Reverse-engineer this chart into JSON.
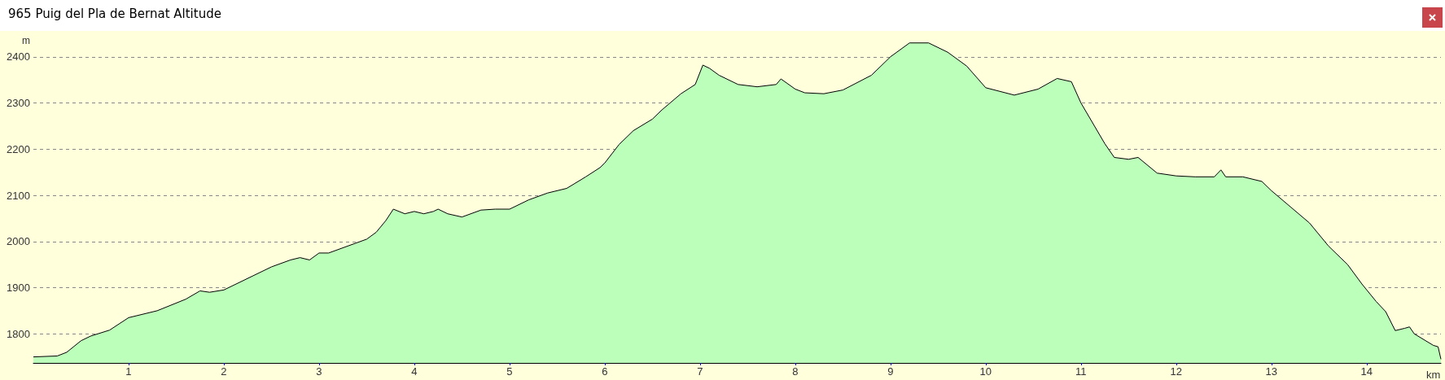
{
  "chart_data": {
    "type": "area",
    "title": "965 Puig del Pla de Bernat Altitude",
    "xlabel": "km",
    "ylabel": "m",
    "xlim": [
      0,
      14.78
    ],
    "xticks": [
      1,
      2,
      3,
      4,
      5,
      6,
      7,
      8,
      9,
      10,
      11,
      12,
      13,
      14
    ],
    "ylim": [
      1737,
      2456
    ],
    "yticks": [
      1800,
      1900,
      2000,
      2100,
      2200,
      2300,
      2400
    ],
    "grid": "y",
    "marker": "none",
    "line_style": "solid",
    "series": [
      {
        "color": "#bbffbb",
        "x": [
          0,
          0.25,
          0.35,
          0.5,
          0.6,
          0.8,
          1.0,
          1.3,
          1.6,
          1.75,
          1.85,
          2.0,
          2.3,
          2.5,
          2.7,
          2.8,
          2.9,
          3.0,
          3.1,
          3.3,
          3.5,
          3.6,
          3.7,
          3.78,
          3.9,
          4.0,
          4.1,
          4.2,
          4.25,
          4.35,
          4.5,
          4.7,
          4.85,
          5.0,
          5.2,
          5.4,
          5.6,
          5.8,
          5.95,
          6.0,
          6.15,
          6.3,
          6.5,
          6.6,
          6.8,
          6.95,
          7.03,
          7.1,
          7.2,
          7.4,
          7.6,
          7.8,
          7.85,
          8.0,
          8.1,
          8.3,
          8.5,
          8.8,
          9.0,
          9.2,
          9.4,
          9.6,
          9.8,
          10.0,
          10.3,
          10.55,
          10.75,
          10.9,
          11.0,
          11.25,
          11.35,
          11.5,
          11.6,
          11.8,
          12.0,
          12.2,
          12.4,
          12.47,
          12.52,
          12.7,
          12.9,
          13.0,
          13.2,
          13.4,
          13.6,
          13.8,
          13.95,
          14.1,
          14.2,
          14.3,
          14.4,
          14.45,
          14.5,
          14.7,
          14.75,
          14.78
        ],
        "values": [
          1750,
          1752,
          1760,
          1785,
          1795,
          1808,
          1835,
          1850,
          1875,
          1893,
          1890,
          1895,
          1925,
          1945,
          1960,
          1965,
          1960,
          1975,
          1975,
          1990,
          2005,
          2020,
          2045,
          2070,
          2060,
          2065,
          2060,
          2065,
          2070,
          2060,
          2053,
          2068,
          2070,
          2070,
          2090,
          2105,
          2115,
          2140,
          2160,
          2170,
          2210,
          2240,
          2265,
          2285,
          2320,
          2340,
          2382,
          2375,
          2360,
          2340,
          2335,
          2340,
          2352,
          2330,
          2322,
          2320,
          2328,
          2360,
          2400,
          2430,
          2430,
          2410,
          2380,
          2333,
          2317,
          2330,
          2353,
          2346,
          2300,
          2212,
          2182,
          2178,
          2182,
          2148,
          2142,
          2140,
          2140,
          2155,
          2140,
          2140,
          2130,
          2110,
          2075,
          2040,
          1990,
          1950,
          1908,
          1870,
          1848,
          1807,
          1812,
          1815,
          1800,
          1775,
          1772,
          1745
        ]
      }
    ]
  }
}
